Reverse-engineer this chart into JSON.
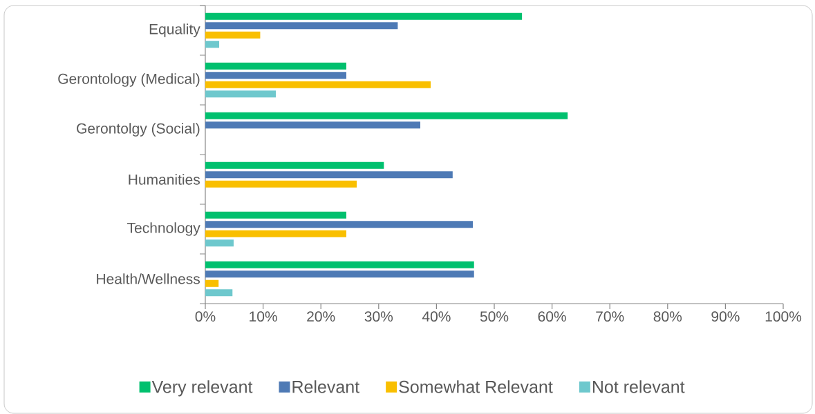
{
  "chart_data": {
    "type": "bar",
    "orientation": "horizontal",
    "categories": [
      "Equality",
      "Gerontology (Medical)",
      "Gerontolgy (Social)",
      "Humanities",
      "Technology",
      "Health/Wellness"
    ],
    "series": [
      {
        "name": "Very relevant",
        "color": "#00c06e",
        "values": [
          54.8,
          24.4,
          62.7,
          30.9,
          24.4,
          46.5
        ]
      },
      {
        "name": "Relevant",
        "color": "#4e7ab5",
        "values": [
          33.3,
          24.4,
          37.2,
          42.8,
          46.3,
          46.5
        ]
      },
      {
        "name": "Somewhat Relevant",
        "color": "#f9bf00",
        "values": [
          9.5,
          39.0,
          0,
          26.2,
          24.4,
          2.3
        ]
      },
      {
        "name": "Not relevant",
        "color": "#6ec8cd",
        "values": [
          2.4,
          12.2,
          0,
          0,
          4.9,
          4.7
        ]
      }
    ],
    "xlim": [
      0,
      100
    ],
    "xticks": [
      {
        "value": 0,
        "label": "0%"
      },
      {
        "value": 10,
        "label": "10%"
      },
      {
        "value": 20,
        "label": "20%"
      },
      {
        "value": 30,
        "label": "30%"
      },
      {
        "value": 40,
        "label": "40%"
      },
      {
        "value": 50,
        "label": "50%"
      },
      {
        "value": 60,
        "label": "60%"
      },
      {
        "value": 70,
        "label": "70%"
      },
      {
        "value": 80,
        "label": "80%"
      },
      {
        "value": 90,
        "label": "90%"
      },
      {
        "value": 100,
        "label": "100%"
      }
    ],
    "legend": "bottom",
    "grid": false
  }
}
